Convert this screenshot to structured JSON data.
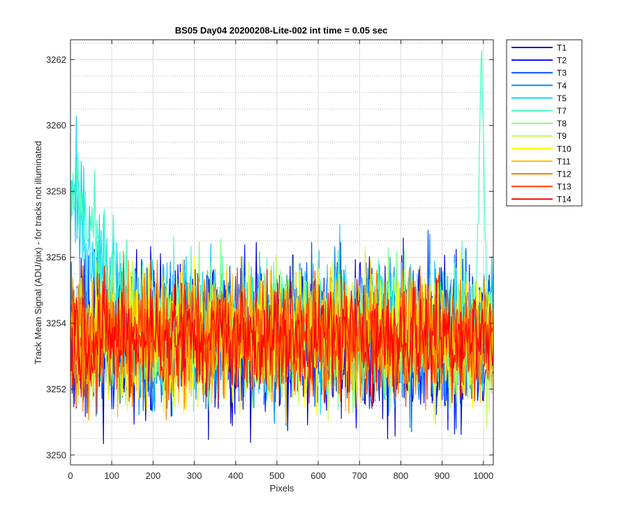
{
  "chart_data": {
    "type": "line",
    "title": "BS05 Day04 20200208-Lite-002 int time = 0.05 sec",
    "xlabel": "Pixels",
    "ylabel": "Track Mean Signal (ADU/pix) - for tracks not illuminated",
    "xlim": [
      0,
      1024
    ],
    "ylim": [
      3249.7,
      3262.6
    ],
    "x_ticks": [
      0,
      100,
      200,
      300,
      400,
      500,
      600,
      700,
      800,
      900,
      1000
    ],
    "y_ticks": [
      3250,
      3252,
      3254,
      3256,
      3258,
      3260,
      3262
    ],
    "y_minor_step": 0.5,
    "grid": "on (major solid, minor dotted)",
    "legend_position": "outside-right-top",
    "baseline_mean": 3253.6,
    "series": [
      {
        "name": "T1",
        "color": "#0000c8",
        "mean": 3253.5,
        "noise": 1.2
      },
      {
        "name": "T2",
        "color": "#0010ff",
        "mean": 3253.5,
        "noise": 1.15
      },
      {
        "name": "T3",
        "color": "#0050ff",
        "mean": 3253.6,
        "noise": 1.1
      },
      {
        "name": "T4",
        "color": "#0090ff",
        "mean": 3253.6,
        "noise": 1.1
      },
      {
        "name": "T5",
        "color": "#10d0ff",
        "mean": 3254.0,
        "noise": 1.1,
        "edge_rise": {
          "x_end": 150,
          "peak": 3257.5
        }
      },
      {
        "name": "T7",
        "color": "#40ffc0",
        "mean": 3254.0,
        "noise": 1.0,
        "edge_rise": {
          "x_end": 150,
          "peak": 3258.0
        },
        "spike": {
          "x": 995,
          "value": 3262.6
        }
      },
      {
        "name": "T8",
        "color": "#80ff80",
        "mean": 3253.6,
        "noise": 1.0
      },
      {
        "name": "T9",
        "color": "#c0ff40",
        "mean": 3253.6,
        "noise": 1.0
      },
      {
        "name": "T10",
        "color": "#ffff00",
        "mean": 3253.6,
        "noise": 1.0
      },
      {
        "name": "T11",
        "color": "#ffc000",
        "mean": 3253.6,
        "noise": 1.0
      },
      {
        "name": "T12",
        "color": "#ff8000",
        "mean": 3253.6,
        "noise": 0.95
      },
      {
        "name": "T13",
        "color": "#ff4000",
        "mean": 3253.6,
        "noise": 0.9
      },
      {
        "name": "T14",
        "color": "#ff0000",
        "mean": 3253.6,
        "noise": 0.85
      }
    ]
  }
}
